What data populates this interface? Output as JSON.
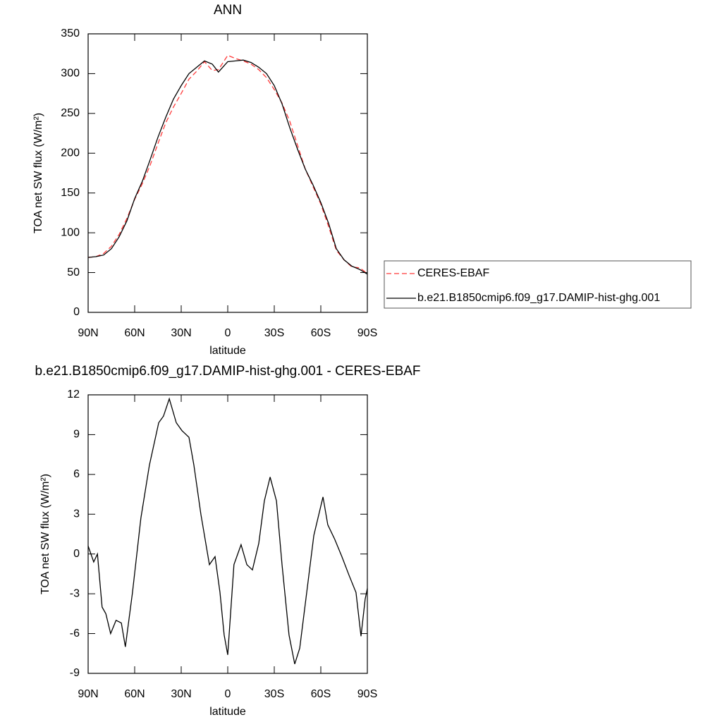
{
  "chart_data": [
    {
      "type": "line",
      "title": "ANN",
      "xlabel": "latitude",
      "ylabel": "TOA net SW flux (W/m²)",
      "x": [
        90,
        85,
        80,
        75,
        70,
        65,
        60,
        55,
        50,
        45,
        40,
        35,
        30,
        25,
        20,
        15,
        10,
        6,
        0,
        -5,
        -10,
        -15,
        -20,
        -25,
        -30,
        -35,
        -40,
        -45,
        -50,
        -55,
        -60,
        -65,
        -70,
        -75,
        -80,
        -85,
        -90
      ],
      "series": [
        {
          "name": "CERES-EBAF",
          "color": "#ff3b3b",
          "linestyle": "dashed",
          "values": [
            69,
            70,
            74,
            83,
            98,
            118,
            142,
            162,
            185,
            212,
            238,
            258,
            275,
            293,
            303,
            315,
            304,
            305,
            323,
            319,
            316,
            312,
            305,
            295,
            280,
            263,
            240,
            210,
            180,
            158,
            136,
            108,
            78,
            66,
            57,
            56,
            49
          ]
        },
        {
          "name": "b.e21.B1850cmip6.f09_g17.DAMIP-hist-ghg.001",
          "color": "#000000",
          "linestyle": "solid",
          "values": [
            69,
            70,
            72,
            80,
            95,
            115,
            143,
            165,
            192,
            220,
            245,
            268,
            285,
            300,
            308,
            316,
            312,
            302,
            315,
            316,
            317,
            314,
            308,
            300,
            285,
            262,
            232,
            205,
            180,
            160,
            138,
            112,
            80,
            66,
            58,
            54,
            48
          ]
        }
      ],
      "xlim": [
        90,
        -90
      ],
      "xticks": [
        {
          "value": 90,
          "label": "90N"
        },
        {
          "value": 60,
          "label": "60N"
        },
        {
          "value": 30,
          "label": "30N"
        },
        0,
        {
          "value": -30,
          "label": "30S"
        },
        {
          "value": -60,
          "label": "60S"
        },
        {
          "value": -90,
          "label": "90S"
        }
      ],
      "ylim": [
        0,
        350
      ],
      "yticks": [
        0,
        50,
        100,
        150,
        200,
        250,
        300,
        350
      ],
      "legend": "right"
    },
    {
      "type": "line",
      "title": "b.e21.B1850cmip6.f09_g17.DAMIP-hist-ghg.001 - CERES-EBAF",
      "xlabel": "latitude",
      "ylabel": "TOA net SW flux (W/m²)",
      "x": [
        90,
        86.4,
        84,
        81,
        78.6,
        75.5,
        72,
        68.6,
        66,
        61.4,
        56,
        50.5,
        44.5,
        41.4,
        37.7,
        33.2,
        29.5,
        25,
        21.8,
        17.3,
        11.8,
        8.2,
        5,
        2.3,
        0,
        -4,
        -8.6,
        -12.3,
        -15.9,
        -20,
        -23.6,
        -27.3,
        -31.4,
        -35,
        -39.5,
        -43.2,
        -46.4,
        -50.9,
        -55.5,
        -61.4,
        -64.5,
        -69,
        -73.6,
        -78.2,
        -82.7,
        -85.9,
        -88.6,
        -90
      ],
      "series": [
        {
          "color": "#000000",
          "linestyle": "solid",
          "values": [
            0.6,
            -0.6,
            0,
            -4,
            -4.5,
            -6,
            -5,
            -5.2,
            -7,
            -2.9,
            2.7,
            6.7,
            9.9,
            10.4,
            11.7,
            9.9,
            9.3,
            8.8,
            6.7,
            3,
            -0.8,
            -0.2,
            -2.9,
            -6.1,
            -7.6,
            -0.8,
            0.7,
            -0.8,
            -1.2,
            0.8,
            4,
            5.8,
            4,
            -0.8,
            -6.1,
            -8.3,
            -7.1,
            -2.9,
            1.4,
            4.3,
            2.2,
            1.1,
            -0.2,
            -1.6,
            -2.9,
            -6.2,
            -3.4,
            -2.6
          ]
        }
      ],
      "xlim": [
        90,
        -90
      ],
      "xticks": [
        {
          "value": 90,
          "label": "90N"
        },
        {
          "value": 60,
          "label": "60N"
        },
        {
          "value": 30,
          "label": "30N"
        },
        0,
        {
          "value": -30,
          "label": "30S"
        },
        {
          "value": -60,
          "label": "60S"
        },
        {
          "value": -90,
          "label": "90S"
        }
      ],
      "ylim": [
        -9,
        12
      ],
      "yticks": [
        -9,
        -6,
        -3,
        0,
        3,
        6,
        9,
        12
      ]
    }
  ]
}
